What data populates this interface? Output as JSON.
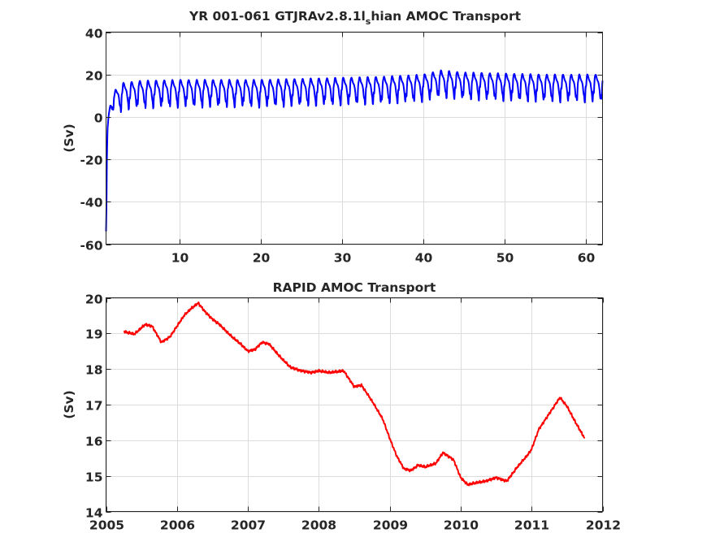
{
  "chart_data": [
    {
      "type": "line",
      "title": "YR 001-061 GTJRAv2.8.1l_shian AMOC Transport",
      "title_parts": {
        "pre": "YR 001-061 GTJRAv2.8.1l",
        "sub": "s",
        "post": "hian AMOC Transport"
      },
      "xlabel": "",
      "ylabel": "(Sv)",
      "xlim": [
        1,
        62
      ],
      "ylim": [
        -60,
        40
      ],
      "xticks": [
        10,
        20,
        30,
        40,
        50,
        60
      ],
      "yticks": [
        -60,
        -40,
        -20,
        0,
        20,
        40
      ],
      "grid": true,
      "color": "#0000ff",
      "series": [
        {
          "x": [
            1.0,
            1.05,
            1.1,
            1.15,
            1.2,
            1.3,
            1.5,
            2.0,
            3.0,
            5.0,
            10.0,
            15.0,
            20.0,
            25.0,
            30.0,
            35.0,
            40.0,
            42.0,
            45.0,
            50.0,
            55.0,
            60.0,
            62.0
          ],
          "values": [
            -54,
            -45,
            -22,
            -10,
            -5,
            0,
            5,
            8,
            11,
            12,
            12.5,
            12.5,
            12.5,
            13,
            13.5,
            14,
            15,
            17,
            16,
            15.5,
            15,
            15,
            15
          ],
          "seasonal_amplitude": 5,
          "period": 1
        }
      ]
    },
    {
      "type": "line",
      "title": "RAPID AMOC Transport",
      "xlabel": "",
      "ylabel": "(Sv)",
      "xlim": [
        2005,
        2012
      ],
      "ylim": [
        14,
        20
      ],
      "xticks": [
        2005,
        2006,
        2007,
        2008,
        2009,
        2010,
        2011,
        2012
      ],
      "yticks": [
        14,
        15,
        16,
        17,
        18,
        19,
        20
      ],
      "grid": true,
      "color": "#ff0000",
      "series": [
        {
          "x": [
            2005.25,
            2005.4,
            2005.55,
            2005.65,
            2005.78,
            2005.9,
            2006.0,
            2006.1,
            2006.2,
            2006.3,
            2006.4,
            2006.5,
            2006.6,
            2006.75,
            2006.9,
            2007.0,
            2007.1,
            2007.2,
            2007.3,
            2007.45,
            2007.6,
            2007.75,
            2007.9,
            2008.0,
            2008.15,
            2008.35,
            2008.5,
            2008.6,
            2008.75,
            2008.9,
            2009.0,
            2009.1,
            2009.2,
            2009.3,
            2009.4,
            2009.5,
            2009.65,
            2009.75,
            2009.9,
            2010.0,
            2010.1,
            2010.2,
            2010.35,
            2010.5,
            2010.65,
            2010.8,
            2010.95,
            2011.0,
            2011.1,
            2011.2,
            2011.3,
            2011.4,
            2011.5,
            2011.62,
            2011.75
          ],
          "values": [
            19.05,
            18.98,
            19.25,
            19.2,
            18.75,
            18.9,
            19.2,
            19.5,
            19.7,
            19.85,
            19.6,
            19.4,
            19.25,
            18.95,
            18.7,
            18.5,
            18.55,
            18.75,
            18.7,
            18.35,
            18.05,
            17.95,
            17.9,
            17.95,
            17.9,
            17.95,
            17.5,
            17.55,
            17.1,
            16.6,
            16.05,
            15.55,
            15.2,
            15.15,
            15.3,
            15.25,
            15.35,
            15.65,
            15.45,
            14.95,
            14.75,
            14.8,
            14.85,
            14.95,
            14.85,
            15.25,
            15.6,
            15.75,
            16.3,
            16.6,
            16.9,
            17.2,
            16.95,
            16.5,
            16.05
          ]
        }
      ]
    }
  ]
}
